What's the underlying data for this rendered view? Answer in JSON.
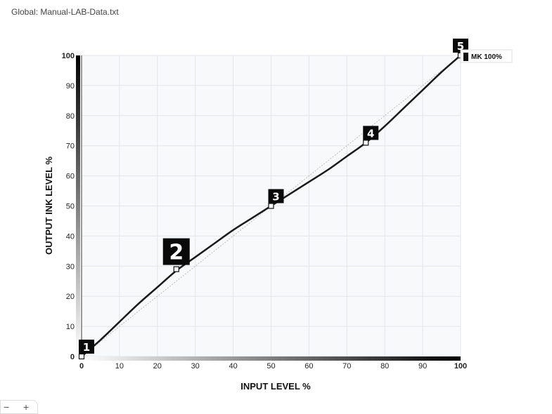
{
  "window": {
    "title": "Global: Manual-LAB-Data.txt"
  },
  "chart_data": {
    "type": "line",
    "xlabel": "INPUT LEVEL %",
    "ylabel": "OUTPUT INK LEVEL %",
    "xlim": [
      0,
      100
    ],
    "ylim": [
      0,
      100
    ],
    "x_ticks": [
      "0",
      "10",
      "20",
      "30",
      "40",
      "50",
      "60",
      "70",
      "80",
      "90",
      "100"
    ],
    "y_ticks": [
      "0",
      "10",
      "20",
      "30",
      "40",
      "50",
      "60",
      "70",
      "80",
      "90",
      "100"
    ],
    "grid": true,
    "series": [
      {
        "name": "MK 100%",
        "color": "#1a1a1a",
        "curve": [
          {
            "x": 0,
            "y": 0
          },
          {
            "x": 5,
            "y": 5.5
          },
          {
            "x": 10,
            "y": 11.5
          },
          {
            "x": 15,
            "y": 17.5
          },
          {
            "x": 20,
            "y": 23
          },
          {
            "x": 25,
            "y": 28.5
          },
          {
            "x": 30,
            "y": 33
          },
          {
            "x": 35,
            "y": 37.5
          },
          {
            "x": 40,
            "y": 42
          },
          {
            "x": 45,
            "y": 46
          },
          {
            "x": 50,
            "y": 50
          },
          {
            "x": 55,
            "y": 54
          },
          {
            "x": 60,
            "y": 58
          },
          {
            "x": 65,
            "y": 62
          },
          {
            "x": 70,
            "y": 66.5
          },
          {
            "x": 75,
            "y": 71
          },
          {
            "x": 80,
            "y": 76.5
          },
          {
            "x": 85,
            "y": 82.5
          },
          {
            "x": 90,
            "y": 88.5
          },
          {
            "x": 95,
            "y": 94.5
          },
          {
            "x": 100,
            "y": 100
          }
        ],
        "points": [
          {
            "label": "1",
            "x": 0,
            "y": 0
          },
          {
            "label": "2",
            "x": 25,
            "y": 29
          },
          {
            "label": "3",
            "x": 50,
            "y": 50
          },
          {
            "label": "4",
            "x": 75,
            "y": 71
          },
          {
            "label": "5",
            "x": 100,
            "y": 100
          }
        ]
      }
    ],
    "reference_line": {
      "color": "#bbbbbb",
      "style": "dotted",
      "from": [
        0,
        0
      ],
      "to": [
        100,
        100
      ]
    }
  },
  "zoom": {
    "out_label": "−",
    "in_label": "+"
  }
}
